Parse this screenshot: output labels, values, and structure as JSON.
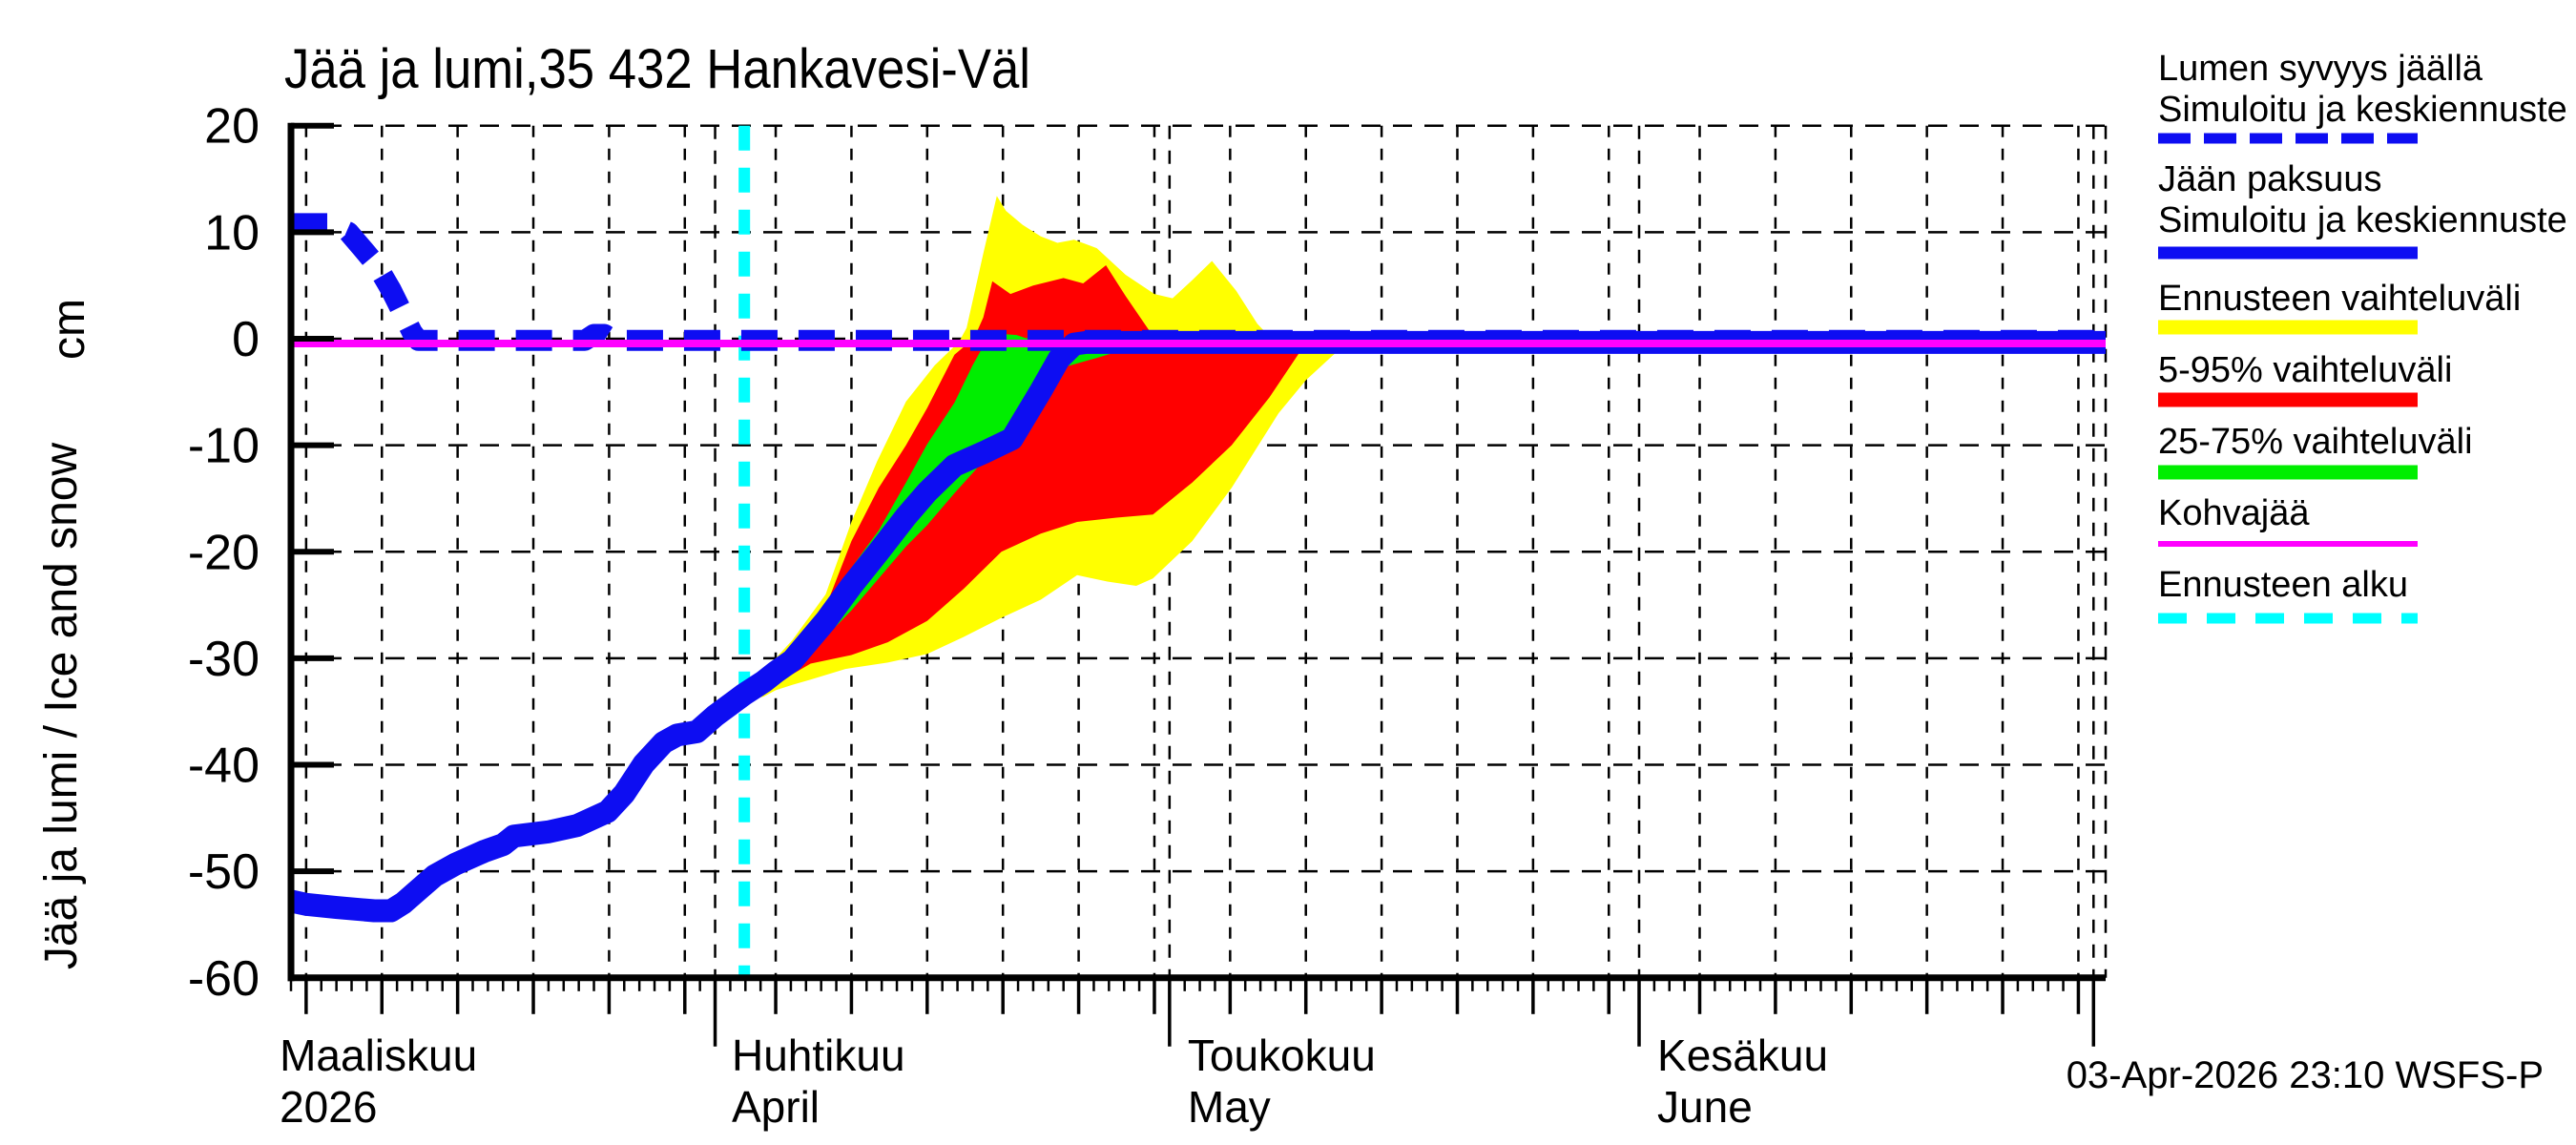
{
  "title": "Jää ja lumi,35 432 Hankavesi-Väl",
  "footer": {
    "timestamp": "03-Apr-2026 23:10 WSFS-P"
  },
  "colors": {
    "blue": "#0d0df2",
    "yellow": "#ffff00",
    "red": "#ff0000",
    "green": "#00ee00",
    "magenta": "#ff00ff",
    "cyan": "#00ffff",
    "axis": "#000000"
  },
  "legend": {
    "items": [
      {
        "id": "snow-depth",
        "lines": [
          "Lumen syvyys jäällä",
          "Simuloitu ja keskiennuste"
        ],
        "swatch": "dashed",
        "color_key": "blue",
        "thickness": 11
      },
      {
        "id": "ice-thickness",
        "lines": [
          "Jään paksuus",
          "Simuloitu ja keskiennuste"
        ],
        "swatch": "solid",
        "color_key": "blue",
        "thickness": 13
      },
      {
        "id": "forecast-range",
        "lines": [
          "Ennusteen vaihteluväli"
        ],
        "swatch": "solid",
        "color_key": "yellow",
        "thickness": 15
      },
      {
        "id": "range-5-95",
        "lines": [
          "5-95% vaihteluväli"
        ],
        "swatch": "solid",
        "color_key": "red",
        "thickness": 15
      },
      {
        "id": "range-25-75",
        "lines": [
          "25-75% vaihteluväli"
        ],
        "swatch": "solid",
        "color_key": "green",
        "thickness": 15
      },
      {
        "id": "kohvajaa",
        "lines": [
          "Kohvajää"
        ],
        "swatch": "solid",
        "color_key": "magenta",
        "thickness": 6
      },
      {
        "id": "forecast-start",
        "lines": [
          "Ennusteen alku"
        ],
        "swatch": "dashed-cyan",
        "color_key": "cyan",
        "thickness": 11
      }
    ]
  },
  "chart_data": {
    "type": "line",
    "title": "Jää ja lumi,35 432 Hankavesi-Väl",
    "ylabel": "Jää ja lumi / Ice and snow",
    "ylabel_unit": "cm",
    "ylim": [
      -60,
      20
    ],
    "y_ticks": [
      20,
      10,
      0,
      -10,
      -20,
      -30,
      -40,
      -50,
      -60
    ],
    "x_axis": {
      "domain_days": 119.8,
      "month_labels": [
        {
          "fi": "Maaliskuu",
          "en": "2026",
          "label_day": -0.75
        },
        {
          "fi": "Huhtikuu",
          "en": "April",
          "label_day": 29.1
        },
        {
          "fi": "Toukokuu",
          "en": "May",
          "label_day": 59.2
        },
        {
          "fi": "Kesäkuu",
          "en": "June",
          "label_day": 90.2
        }
      ],
      "month_line_days": [
        28,
        58,
        89,
        119
      ],
      "fiveday_line_days": [
        1,
        6,
        11,
        16,
        21,
        26,
        32,
        37,
        42,
        47,
        52,
        57,
        62,
        67,
        72,
        77,
        82,
        87,
        93,
        98,
        103,
        108,
        113,
        118
      ]
    },
    "forecast_start": {
      "label": "Ennusteen alku",
      "day": 29.93,
      "color_key": "cyan"
    },
    "series": [
      {
        "id": "snow-depth-line",
        "name": "Lumen syvyys jäällä (Simuloitu ja keskiennuste)",
        "style": "dashed",
        "color_key": "blue",
        "width": 22,
        "points": [
          [
            0,
            10.8
          ],
          [
            2.5,
            10.8
          ],
          [
            3.8,
            10.0
          ],
          [
            4.7,
            8.5
          ],
          [
            5.7,
            6.8
          ],
          [
            6.6,
            4.6
          ],
          [
            7.3,
            2.6
          ],
          [
            8.0,
            0.6
          ],
          [
            8.4,
            -0.15
          ],
          [
            19.4,
            -0.15
          ],
          [
            20.0,
            0.4
          ],
          [
            20.7,
            0.4
          ],
          [
            21.3,
            -0.15
          ],
          [
            119.8,
            -0.15
          ]
        ]
      },
      {
        "id": "ice-thickness-line",
        "name": "Jään paksuus (Simuloitu ja keskiennuste)",
        "style": "solid",
        "color_key": "blue",
        "width": 24,
        "points": [
          [
            0,
            -52.8
          ],
          [
            1,
            -53.1
          ],
          [
            3,
            -53.4
          ],
          [
            5.5,
            -53.7
          ],
          [
            6.6,
            -53.7
          ],
          [
            7.4,
            -53.0
          ],
          [
            8.2,
            -52.0
          ],
          [
            9.5,
            -50.4
          ],
          [
            10.9,
            -49.3
          ],
          [
            12.8,
            -48.1
          ],
          [
            14,
            -47.5
          ],
          [
            14.7,
            -46.7
          ],
          [
            17,
            -46.3
          ],
          [
            18.9,
            -45.7
          ],
          [
            20.9,
            -44.4
          ],
          [
            22,
            -42.7
          ],
          [
            23.3,
            -39.9
          ],
          [
            24.6,
            -37.9
          ],
          [
            25.5,
            -37.2
          ],
          [
            26.8,
            -36.9
          ],
          [
            28,
            -35.4
          ],
          [
            29.9,
            -33.4
          ],
          [
            31.2,
            -32.2
          ],
          [
            32,
            -31.3
          ],
          [
            33.1,
            -30.2
          ],
          [
            35.3,
            -26.5
          ],
          [
            37,
            -23.2
          ],
          [
            38.8,
            -20.0
          ],
          [
            40.6,
            -16.7
          ],
          [
            42,
            -14.4
          ],
          [
            43.8,
            -11.9
          ],
          [
            45.7,
            -10.7
          ],
          [
            47.6,
            -9.4
          ],
          [
            49.5,
            -4.9
          ],
          [
            50.7,
            -1.9
          ],
          [
            51.7,
            -0.5
          ],
          [
            52.5,
            -0.35
          ],
          [
            119.8,
            -0.35
          ]
        ]
      },
      {
        "id": "kohvajaa-line",
        "name": "Kohvajää",
        "style": "solid",
        "color_key": "magenta",
        "width": 8,
        "points": [
          [
            0,
            -0.45
          ],
          [
            119.8,
            -0.45
          ]
        ]
      }
    ],
    "bands": [
      {
        "id": "band-forecast-range",
        "name": "Ennusteen vaihteluväli",
        "color_key": "yellow",
        "upper": [
          [
            29.9,
            -33
          ],
          [
            31.2,
            -31.2
          ],
          [
            32,
            -30
          ],
          [
            33.1,
            -28.3
          ],
          [
            35.3,
            -24
          ],
          [
            37,
            -17.2
          ],
          [
            38.7,
            -11.5
          ],
          [
            40.6,
            -5.9
          ],
          [
            42.5,
            -2.5
          ],
          [
            44.1,
            -0.3
          ],
          [
            44.6,
            1.0
          ],
          [
            45.7,
            8.0
          ],
          [
            46.6,
            13.4
          ],
          [
            47.2,
            12.0
          ],
          [
            48.3,
            10.7
          ],
          [
            49.5,
            9.6
          ],
          [
            50.6,
            9.0
          ],
          [
            51.7,
            9.3
          ],
          [
            53.2,
            8.5
          ],
          [
            55.1,
            6.0
          ],
          [
            57,
            4.2
          ],
          [
            58.2,
            3.8
          ],
          [
            59.5,
            5.5
          ],
          [
            60.8,
            7.3
          ],
          [
            62.4,
            4.5
          ],
          [
            63.8,
            1.4
          ],
          [
            64.7,
            0.05
          ],
          [
            69.9,
            0.05
          ]
        ],
        "lower": [
          [
            29.9,
            -34
          ],
          [
            31.2,
            -33.6
          ],
          [
            32,
            -33
          ],
          [
            33.1,
            -32.5
          ],
          [
            34.3,
            -32
          ],
          [
            36.6,
            -31
          ],
          [
            39.4,
            -30.4
          ],
          [
            42,
            -29.6
          ],
          [
            44.4,
            -28
          ],
          [
            46.9,
            -26.2
          ],
          [
            49.5,
            -24.5
          ],
          [
            51.9,
            -22.2
          ],
          [
            53.9,
            -22.8
          ],
          [
            55.8,
            -23.2
          ],
          [
            56.9,
            -22.5
          ],
          [
            59.5,
            -19
          ],
          [
            62.1,
            -14
          ],
          [
            65.2,
            -7
          ],
          [
            67,
            -3.9
          ],
          [
            69.9,
            -0.1
          ]
        ]
      },
      {
        "id": "band-5-95",
        "name": "5-95% vaihteluväli",
        "color_key": "red",
        "upper": [
          [
            29.9,
            -33.2
          ],
          [
            31.2,
            -31.7
          ],
          [
            32,
            -30.5
          ],
          [
            33.1,
            -28.9
          ],
          [
            35.3,
            -25.2
          ],
          [
            37,
            -19
          ],
          [
            38.8,
            -14
          ],
          [
            40.6,
            -10
          ],
          [
            42,
            -6.5
          ],
          [
            43.8,
            -1.5
          ],
          [
            45.1,
            0.05
          ],
          [
            45.7,
            2.0
          ],
          [
            46.3,
            5.4
          ],
          [
            47.5,
            4.2
          ],
          [
            49,
            5.0
          ],
          [
            51,
            5.7
          ],
          [
            52.3,
            5.2
          ],
          [
            53.8,
            6.9
          ],
          [
            55.1,
            4.0
          ],
          [
            57,
            0.05
          ],
          [
            67.7,
            0.05
          ]
        ],
        "lower": [
          [
            29.9,
            -33.8
          ],
          [
            32,
            -32.3
          ],
          [
            33.1,
            -31.5
          ],
          [
            34.3,
            -30.5
          ],
          [
            37,
            -29.7
          ],
          [
            39.4,
            -28.5
          ],
          [
            42,
            -26.5
          ],
          [
            44.4,
            -23.5
          ],
          [
            46.9,
            -20
          ],
          [
            49.5,
            -18.3
          ],
          [
            51.9,
            -17.2
          ],
          [
            54.5,
            -16.8
          ],
          [
            56.9,
            -16.5
          ],
          [
            59.5,
            -13.5
          ],
          [
            62.1,
            -10
          ],
          [
            64.6,
            -5.5
          ],
          [
            67,
            -0.4
          ],
          [
            67.7,
            -0.05
          ]
        ]
      },
      {
        "id": "band-25-75",
        "name": "25-75% vaihteluväli",
        "color_key": "green",
        "upper": [
          [
            29.9,
            -33.3
          ],
          [
            32,
            -30.8
          ],
          [
            33.1,
            -29.6
          ],
          [
            35.3,
            -25.8
          ],
          [
            37,
            -21.5
          ],
          [
            38.8,
            -18
          ],
          [
            40.6,
            -13.5
          ],
          [
            42,
            -9.9
          ],
          [
            43.8,
            -6
          ],
          [
            45,
            -2.5
          ],
          [
            46,
            0.05
          ],
          [
            46.9,
            0.45
          ],
          [
            47.9,
            0.35
          ],
          [
            48.5,
            0.05
          ],
          [
            57.3,
            0.05
          ]
        ],
        "lower": [
          [
            29.9,
            -33.6
          ],
          [
            32,
            -31.8
          ],
          [
            33.1,
            -30.8
          ],
          [
            35.3,
            -28
          ],
          [
            37,
            -25.5
          ],
          [
            38.8,
            -22.5
          ],
          [
            40.6,
            -19.5
          ],
          [
            42,
            -17.5
          ],
          [
            43.8,
            -14.5
          ],
          [
            45.7,
            -11.5
          ],
          [
            47.6,
            -8
          ],
          [
            49.5,
            -4.5
          ],
          [
            50.7,
            -2.8
          ],
          [
            53.2,
            -1.8
          ],
          [
            56.7,
            -0.3
          ],
          [
            57.3,
            -0.05
          ]
        ]
      }
    ]
  }
}
